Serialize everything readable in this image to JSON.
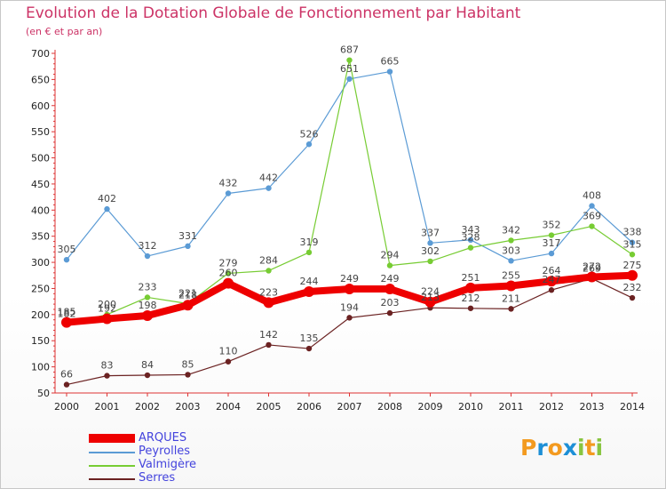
{
  "title": "Evolution de la Dotation Globale de Fonctionnement par Habitant",
  "subtitle": "(en € et par an)",
  "logo": {
    "text": "Proxiti",
    "letters": [
      "P",
      "r",
      "o",
      "x",
      "i",
      "t",
      "i"
    ],
    "colors": [
      "#f39a1f",
      "#1d8fd6",
      "#f39a1f",
      "#1d8fd6",
      "#88c540",
      "#f39a1f",
      "#88c540"
    ]
  },
  "chart_data": {
    "type": "line",
    "title": "Evolution de la Dotation Globale de Fonctionnement par Habitant",
    "subtitle": "(en € et par an)",
    "x": [
      "2000",
      "2001",
      "2002",
      "2003",
      "2004",
      "2005",
      "2006",
      "2007",
      "2008",
      "2009",
      "2010",
      "2011",
      "2012",
      "2013",
      "2014"
    ],
    "ylim": [
      50,
      700
    ],
    "yticks": [
      50,
      100,
      150,
      200,
      250,
      300,
      350,
      400,
      450,
      500,
      550,
      600,
      650,
      700
    ],
    "grid": false,
    "legend_position": "bottom-left",
    "series": [
      {
        "name": "ARQUES",
        "color": "#ee0000",
        "values": [
          185,
          192,
          198,
          218,
          260,
          223,
          244,
          249,
          249,
          224,
          251,
          255,
          264,
          272,
          275
        ]
      },
      {
        "name": "Peyrolles",
        "color": "#5b9bd5",
        "values": [
          305,
          402,
          312,
          331,
          432,
          442,
          526,
          651,
          665,
          337,
          343,
          303,
          317,
          408,
          338
        ]
      },
      {
        "name": "Valmigère",
        "color": "#77cc33",
        "values": [
          182,
          200,
          233,
          221,
          279,
          284,
          319,
          687,
          294,
          302,
          328,
          342,
          352,
          369,
          315
        ]
      },
      {
        "name": "Serres",
        "color": "#6b2222",
        "values": [
          66,
          83,
          84,
          85,
          110,
          142,
          135,
          194,
          203,
          213,
          212,
          211,
          247,
          269,
          232
        ]
      }
    ]
  }
}
